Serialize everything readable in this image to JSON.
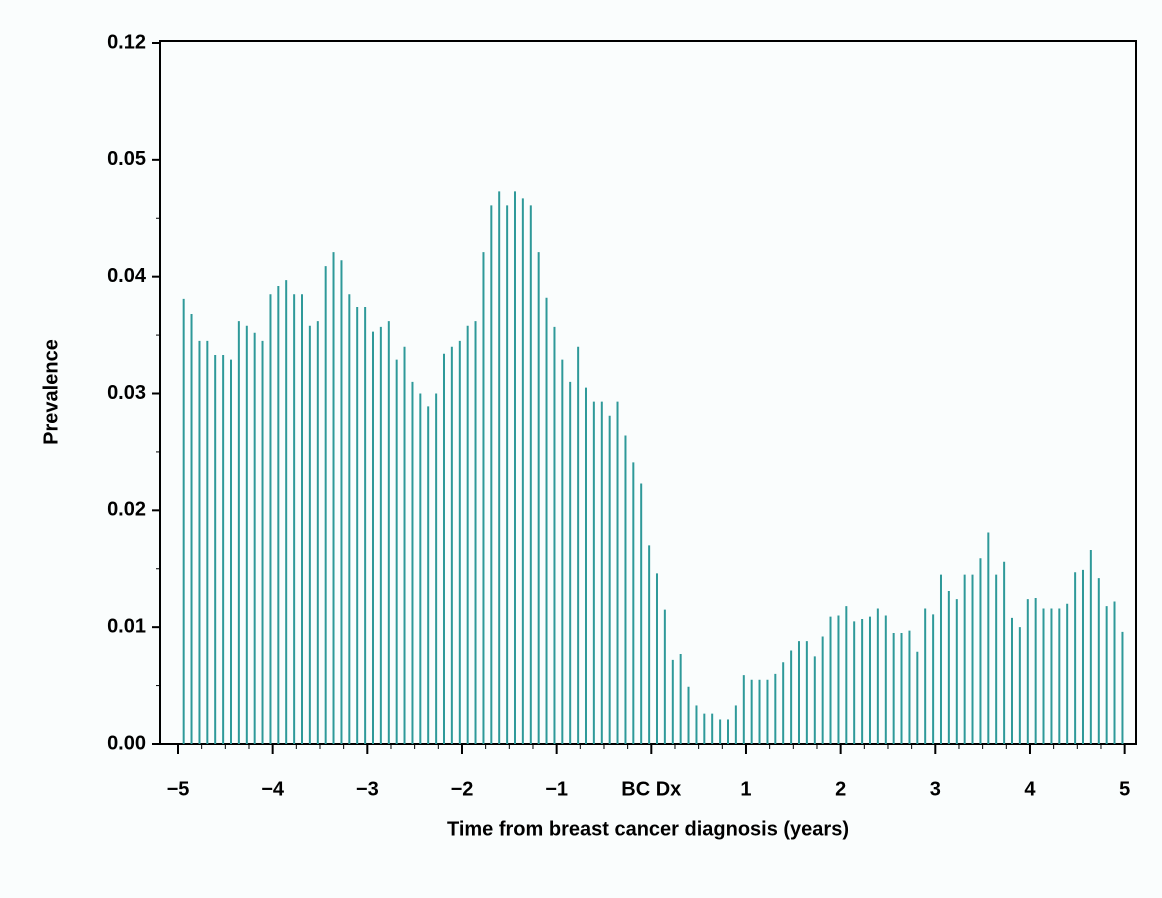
{
  "chart_data": {
    "type": "bar",
    "xlabel": "Time from breast cancer diagnosis (years)",
    "ylabel": "Prevalence",
    "color": "#2e9999",
    "xlim": [
      -5.19,
      5.12
    ],
    "xticks": [
      {
        "value": -5,
        "label": "−5"
      },
      {
        "value": -4,
        "label": "−4"
      },
      {
        "value": -3,
        "label": "−3"
      },
      {
        "value": -2,
        "label": "−2"
      },
      {
        "value": -1,
        "label": "−1"
      },
      {
        "value": 0,
        "label": "BC Dx"
      },
      1,
      2,
      3,
      4,
      5
    ],
    "xminorticks": [
      -4.75,
      -4.5,
      -4.25,
      -3.75,
      -3.5,
      -3.25,
      -2.75,
      -2.5,
      -2.25,
      -1.75,
      -1.5,
      -1.25,
      -0.75,
      -0.5,
      -0.25,
      0.25,
      0.5,
      0.75,
      1.25,
      1.5,
      1.75,
      2.25,
      2.5,
      2.75,
      3.25,
      3.5,
      3.75,
      4.25,
      4.5,
      4.75
    ],
    "ylim": [
      0,
      0.12
    ],
    "yticks": [
      {
        "value": 0,
        "label": "0.00"
      },
      0.01,
      0.02,
      0.03,
      0.04,
      0.05,
      0.12
    ],
    "yminorticks": [
      0.005,
      0.015,
      0.025,
      0.035,
      0.045
    ],
    "x": [
      -4.94,
      -4.857,
      -4.773,
      -4.69,
      -4.607,
      -4.523,
      -4.44,
      -4.357,
      -4.273,
      -4.19,
      -4.107,
      -4.023,
      -3.94,
      -3.857,
      -3.773,
      -3.69,
      -3.607,
      -3.523,
      -3.44,
      -3.357,
      -3.273,
      -3.19,
      -3.107,
      -3.023,
      -2.94,
      -2.857,
      -2.773,
      -2.69,
      -2.607,
      -2.523,
      -2.44,
      -2.357,
      -2.273,
      -2.19,
      -2.107,
      -2.023,
      -1.94,
      -1.857,
      -1.773,
      -1.69,
      -1.607,
      -1.523,
      -1.44,
      -1.357,
      -1.273,
      -1.19,
      -1.107,
      -1.023,
      -0.94,
      -0.857,
      -0.773,
      -0.69,
      -0.607,
      -0.523,
      -0.44,
      -0.357,
      -0.273,
      -0.19,
      -0.107,
      -0.023,
      0.06,
      0.143,
      0.227,
      0.31,
      0.393,
      0.477,
      0.56,
      0.643,
      0.727,
      0.81,
      0.893,
      0.977,
      1.06,
      1.143,
      1.227,
      1.31,
      1.393,
      1.477,
      1.56,
      1.643,
      1.727,
      1.81,
      1.893,
      1.977,
      2.06,
      2.143,
      2.227,
      2.31,
      2.393,
      2.477,
      2.56,
      2.643,
      2.727,
      2.81,
      2.893,
      2.977,
      3.06,
      3.143,
      3.227,
      3.31,
      3.393,
      3.477,
      3.56,
      3.643,
      3.727,
      3.81,
      3.893,
      3.977,
      4.06,
      4.143,
      4.227,
      4.31,
      4.393,
      4.477,
      4.56,
      4.643,
      4.727,
      4.81,
      4.893,
      4.977
    ],
    "values": [
      0.0381,
      0.0368,
      0.0345,
      0.0345,
      0.0333,
      0.0333,
      0.0329,
      0.0362,
      0.0358,
      0.0352,
      0.0345,
      0.0385,
      0.0392,
      0.0397,
      0.0385,
      0.0385,
      0.0358,
      0.0362,
      0.0409,
      0.0421,
      0.0414,
      0.0385,
      0.0374,
      0.0374,
      0.0353,
      0.0357,
      0.0362,
      0.0329,
      0.034,
      0.031,
      0.03,
      0.0289,
      0.03,
      0.0334,
      0.034,
      0.0345,
      0.0358,
      0.0362,
      0.0421,
      0.0461,
      0.0473,
      0.0461,
      0.0473,
      0.0467,
      0.0461,
      0.0421,
      0.0382,
      0.0357,
      0.0329,
      0.031,
      0.034,
      0.0305,
      0.0293,
      0.0293,
      0.0281,
      0.0293,
      0.0264,
      0.0241,
      0.0223,
      0.017,
      0.0146,
      0.0115,
      0.0072,
      0.0077,
      0.0049,
      0.0033,
      0.0026,
      0.0026,
      0.0021,
      0.0021,
      0.0033,
      0.0059,
      0.0055,
      0.0055,
      0.0055,
      0.006,
      0.007,
      0.008,
      0.0088,
      0.0088,
      0.0075,
      0.0092,
      0.0109,
      0.011,
      0.0118,
      0.0105,
      0.0107,
      0.0109,
      0.0116,
      0.011,
      0.0095,
      0.0095,
      0.0097,
      0.0079,
      0.0116,
      0.0111,
      0.0145,
      0.0131,
      0.0124,
      0.0145,
      0.0145,
      0.0159,
      0.0181,
      0.0145,
      0.0156,
      0.0108,
      0.01,
      0.0124,
      0.0125,
      0.0116,
      0.0116,
      0.0116,
      0.012,
      0.0147,
      0.0149,
      0.0166,
      0.0142,
      0.0118,
      0.0122,
      0.0096
    ]
  }
}
